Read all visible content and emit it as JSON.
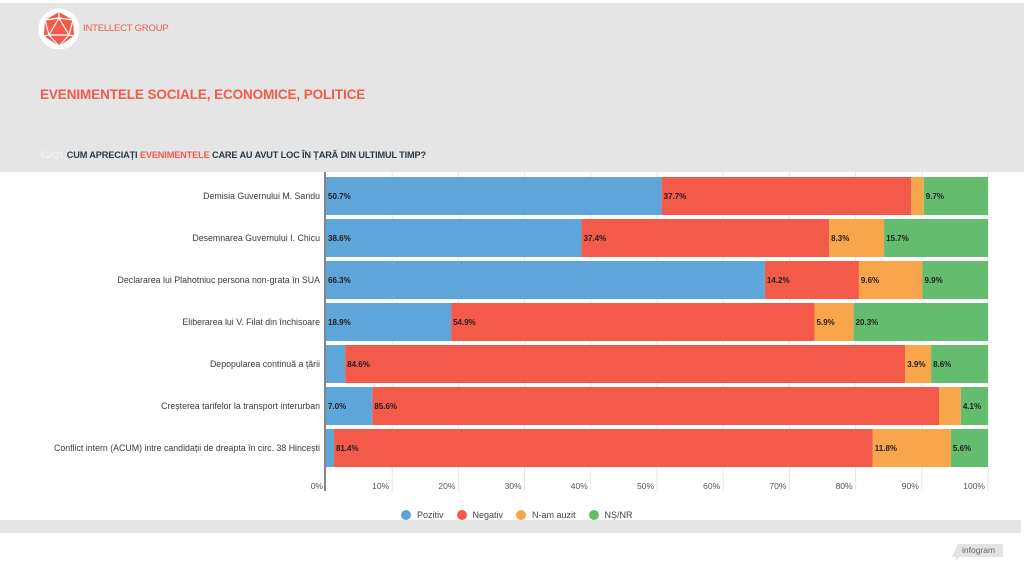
{
  "brand": {
    "name": "INTELLECT GROUP",
    "logo_icon": "icosahedron-logo-icon"
  },
  "header": {
    "title": "EVENIMENTELE SOCIALE, ECONOMICE, POLITICE",
    "question": {
      "code": "IG/Q1",
      "prefix": "CUM APRECIAȚI",
      "highlight": "EVENIMENTELE",
      "suffix": "CARE AU AVUT LOC ÎN ȚARĂ DIN ULTIMUL TIMP?"
    }
  },
  "colors": {
    "brand_red": "#f05b4b",
    "header_gray": "#e5e5e5",
    "pozitiv": "#5ea5da",
    "negativ": "#f35a4a",
    "nam_auzit": "#f9a54b",
    "ns_nr": "#64bd6e"
  },
  "chart_data": {
    "type": "bar",
    "orientation": "horizontal",
    "stacked": true,
    "title": "CUM APRECIAȚI EVENIMENTELE CARE AU AVUT LOC ÎN ȚARĂ DIN ULTIMUL TIMP?",
    "xlabel": "",
    "ylabel": "",
    "xlim": [
      0,
      100
    ],
    "x_ticks": [
      "0%",
      "10%",
      "20%",
      "30%",
      "40%",
      "50%",
      "60%",
      "70%",
      "80%",
      "90%",
      "100%"
    ],
    "grid": true,
    "legend_position": "bottom",
    "value_suffix": "%",
    "categories": [
      "Demisia Guvernului M. Sandu",
      "Desemnarea Guvernului I. Chicu",
      "Declararea lui Plahotniuc persona non-grata în SUA",
      "Eliberarea lui V. Filat din închisoare",
      "Depopularea continuă a țării",
      "Creșterea tarifelor la transport interurban",
      "Conflict intern (ACUM) intre candidații de dreapta în circ. 38 Hincești"
    ],
    "series": [
      {
        "name": "Pozitiv",
        "color": "#5ea5da",
        "values": [
          50.7,
          38.6,
          66.3,
          18.9,
          2.9,
          7.0,
          1.2
        ]
      },
      {
        "name": "Negativ",
        "color": "#f35a4a",
        "values": [
          37.7,
          37.4,
          14.2,
          54.9,
          84.6,
          85.6,
          81.4
        ]
      },
      {
        "name": "N-am auzit",
        "color": "#f9a54b",
        "values": [
          1.9,
          8.3,
          9.6,
          5.9,
          3.9,
          3.3,
          11.8
        ]
      },
      {
        "name": "NȘ/NR",
        "color": "#64bd6e",
        "values": [
          9.7,
          15.7,
          9.9,
          20.3,
          8.6,
          4.1,
          5.6
        ]
      }
    ]
  },
  "footer": {
    "badge": "infogram"
  }
}
